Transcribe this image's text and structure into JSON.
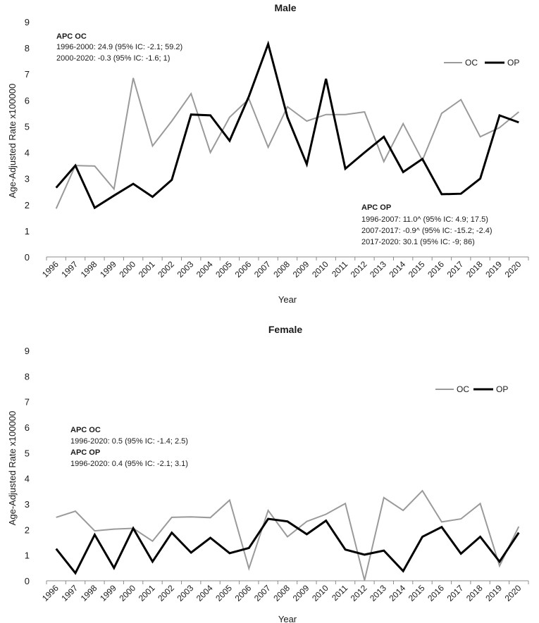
{
  "chart_data": [
    {
      "type": "line",
      "title": "Male",
      "xlabel": "Year",
      "ylabel": "Age-Adjusted Rate x100000",
      "ylim": [
        0,
        9
      ],
      "yticks": [
        "0",
        "1",
        "2",
        "3",
        "4",
        "5",
        "6",
        "7",
        "8",
        "9"
      ],
      "categories": [
        "1996",
        "1997",
        "1998",
        "1999",
        "2000",
        "2001",
        "2002",
        "2003",
        "2004",
        "2005",
        "2006",
        "2007",
        "2008",
        "2009",
        "2010",
        "2011",
        "2012",
        "2013",
        "2014",
        "2015",
        "2016",
        "2017",
        "2018",
        "2019",
        "2020"
      ],
      "series": [
        {
          "name": "OC",
          "color": "#9a9a9a",
          "values": [
            1.85,
            3.5,
            3.48,
            2.6,
            6.85,
            4.25,
            5.2,
            6.25,
            4.0,
            5.35,
            6.05,
            4.2,
            5.75,
            5.2,
            5.45,
            5.45,
            5.55,
            3.65,
            5.1,
            3.7,
            5.5,
            6.02,
            4.6,
            4.95,
            5.55
          ]
        },
        {
          "name": "OP",
          "color": "#000000",
          "values": [
            2.65,
            3.5,
            1.88,
            2.35,
            2.8,
            2.3,
            2.95,
            5.45,
            5.42,
            4.45,
            6.15,
            8.15,
            5.35,
            3.55,
            6.82,
            3.38,
            4.0,
            4.6,
            3.25,
            3.75,
            2.4,
            2.42,
            3.0,
            5.42,
            5.15
          ]
        }
      ],
      "legend": "top-right",
      "annotations": [
        {
          "heading": "APC OC",
          "lines": [
            "1996-2000: 24.9 (95% IC: -2.1; 59.2)",
            "2000-2020: -0.3 (95% IC: -1.6; 1)"
          ]
        },
        {
          "heading": "APC OP",
          "lines": [
            "1996-2007: 11.0^ (95% IC: 4.9; 17.5)",
            "2007-2017: -0.9^ (95% IC: -15.2; -2.4)",
            "2017-2020: 30.1 (95% IC: -9; 86)"
          ]
        }
      ]
    },
    {
      "type": "line",
      "title": "Female",
      "xlabel": "Year",
      "ylabel": "Age-Adjusted Rate x100000",
      "ylim": [
        0,
        9
      ],
      "yticks": [
        "0",
        "1",
        "2",
        "3",
        "4",
        "5",
        "6",
        "7",
        "8",
        "9"
      ],
      "categories": [
        "1996",
        "1997",
        "1998",
        "1999",
        "2000",
        "2001",
        "2002",
        "2003",
        "2004",
        "2005",
        "2006",
        "2007",
        "2008",
        "2009",
        "2010",
        "2011",
        "2012",
        "2013",
        "2014",
        "2015",
        "2016",
        "2017",
        "2018",
        "2019",
        "2020"
      ],
      "series": [
        {
          "name": "OC",
          "color": "#9a9a9a",
          "values": [
            2.48,
            2.72,
            1.95,
            2.02,
            2.05,
            1.55,
            2.48,
            2.5,
            2.47,
            3.15,
            0.48,
            2.75,
            1.72,
            2.32,
            2.6,
            3.02,
            0.02,
            3.25,
            2.75,
            3.52,
            2.3,
            2.42,
            3.02,
            0.58,
            2.12
          ]
        },
        {
          "name": "OP",
          "color": "#000000",
          "values": [
            1.25,
            0.3,
            1.8,
            0.5,
            2.05,
            0.75,
            1.88,
            1.1,
            1.68,
            1.08,
            1.28,
            2.42,
            2.32,
            1.82,
            2.35,
            1.22,
            1.02,
            1.18,
            0.38,
            1.72,
            2.1,
            1.06,
            1.72,
            0.75,
            1.88
          ]
        }
      ],
      "legend": "top-right",
      "annotations": [
        {
          "heading": "APC OC",
          "lines": [
            "1996-2020: 0.5 (95% IC: -1.4; 2.5)"
          ]
        },
        {
          "heading": "APC OP",
          "lines": [
            "1996-2020: 0.4 (95% IC: -2.1; 3.1)"
          ]
        }
      ]
    }
  ]
}
